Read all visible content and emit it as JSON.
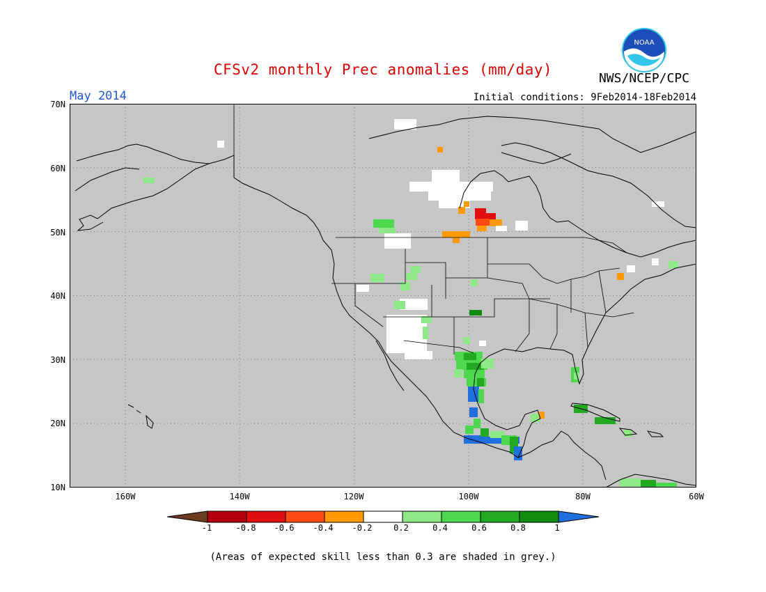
{
  "header": {
    "title": "CFSv2 monthly Prec anomalies (mm/day)",
    "month": "May 2014",
    "initial_conditions": "Initial conditions: 9Feb2014-18Feb2014",
    "org": "NWS/NCEP/CPC",
    "logo_text": "NOAA"
  },
  "map": {
    "lat_labels": [
      "70N",
      "60N",
      "50N",
      "40N",
      "30N",
      "20N",
      "10N"
    ],
    "lon_labels": [
      "160W",
      "140W",
      "120W",
      "100W",
      "80W",
      "60W"
    ],
    "land_mask_color": "#c6c6c6",
    "coast_color": "#000000"
  },
  "colorbar": {
    "labels": [
      "-1",
      "-0.8",
      "-0.6",
      "-0.4",
      "-0.2",
      "0.2",
      "0.4",
      "0.6",
      "0.8",
      "1"
    ],
    "colors": [
      "#6b3a1f",
      "#b5000f",
      "#e00f0f",
      "#ff4b13",
      "#ff9a05",
      "#ffffff",
      "#8ee888",
      "#4ed74f",
      "#22a822",
      "#118c11",
      "#1f6fdf"
    ]
  },
  "footnote": "(Areas of expected skill less than 0.3 are shaded in grey.)"
}
